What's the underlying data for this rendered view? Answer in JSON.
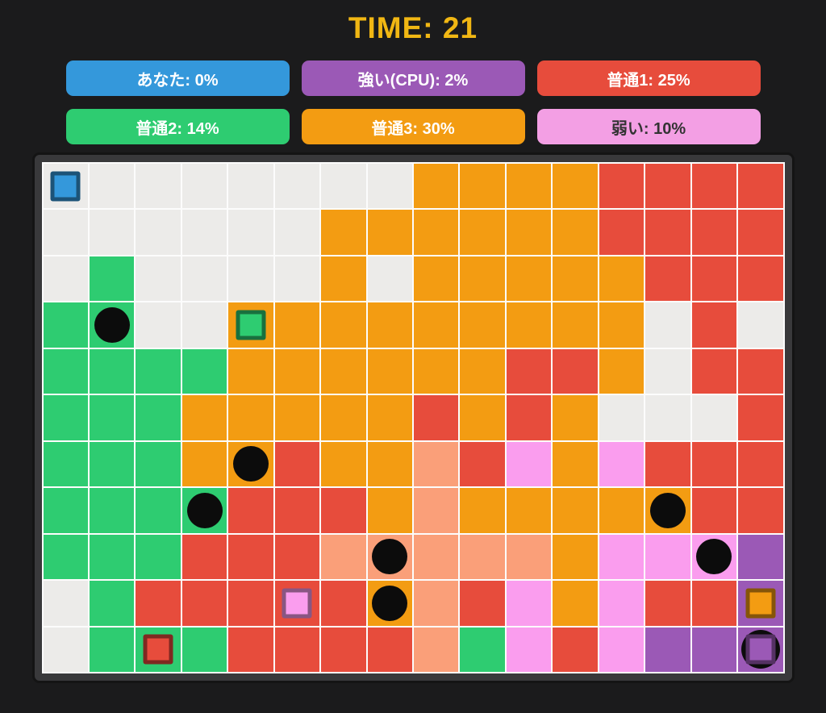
{
  "header": {
    "time_label": "TIME: 21",
    "time_color": "#F1B713"
  },
  "scoreboard": {
    "players": [
      {
        "id": "you",
        "name": "あなた",
        "percent": "0%",
        "label": "あなた: 0%",
        "bg": "#3498DB",
        "fg": "#FFFFFF"
      },
      {
        "id": "cpu-strong",
        "name": "強い(CPU)",
        "percent": "2%",
        "label": "強い(CPU): 2%",
        "bg": "#9B59B6",
        "fg": "#FFFFFF"
      },
      {
        "id": "normal1",
        "name": "普通1",
        "percent": "25%",
        "label": "普通1: 25%",
        "bg": "#E74C3C",
        "fg": "#FFFFFF"
      },
      {
        "id": "normal2",
        "name": "普通2",
        "percent": "14%",
        "label": "普通2: 14%",
        "bg": "#2ECC71",
        "fg": "#FFFFFF"
      },
      {
        "id": "normal3",
        "name": "普通3",
        "percent": "30%",
        "label": "普通3: 30%",
        "bg": "#F39C12",
        "fg": "#FFFFFF"
      },
      {
        "id": "weak",
        "name": "弱い",
        "percent": "10%",
        "label": "弱い: 10%",
        "bg": "#F39FE4",
        "fg": "#333333"
      }
    ]
  },
  "board": {
    "cols": 16,
    "rows": 11,
    "palette": {
      "E": "#ECEBE9",
      "G": "#2ECC71",
      "O": "#F39C12",
      "R": "#E74C3C",
      "S": "#FA9F79",
      "P": "#FA9DEE",
      "U": "#9B59B6"
    },
    "palette_legend": {
      "E": "empty",
      "G": "normal2-green",
      "O": "normal3-orange",
      "R": "normal1-red",
      "S": "red-trail-salmon",
      "P": "weak-pink",
      "U": "cpu-strong-purple"
    },
    "cells": [
      "EEEEEEEEOOOORRRR",
      "EEEEEEOOOOOORRRR",
      "EGEEEEOEOOOOORRR",
      "GGEEOOOOOOOOOERE",
      "GGGGOOOOOORROERR",
      "GGGOOOOOROROEEER",
      "GGGOOROOSRPOPRRR",
      "GGGGRRROSOOOOORR",
      "GGGRRRSSSSSOPPPU",
      "EGRRRRROSRPOPRRU",
      "EGGGRRRRSGPRPUUU"
    ],
    "bombs": [
      {
        "col": 1,
        "row": 3
      },
      {
        "col": 4,
        "row": 6
      },
      {
        "col": 3,
        "row": 7
      },
      {
        "col": 13,
        "row": 7
      },
      {
        "col": 7,
        "row": 8
      },
      {
        "col": 14,
        "row": 8
      },
      {
        "col": 7,
        "row": 9
      },
      {
        "col": 15,
        "row": 10,
        "big": true
      }
    ],
    "heads": [
      {
        "id": "you",
        "col": 0,
        "row": 0,
        "color": "#3498DB"
      },
      {
        "id": "normal2",
        "col": 4,
        "row": 3,
        "color": "#2ECC71"
      },
      {
        "id": "weak",
        "col": 5,
        "row": 9,
        "color": "#FA9DEE"
      },
      {
        "id": "normal3",
        "col": 15,
        "row": 9,
        "color": "#F39C12"
      },
      {
        "id": "normal1",
        "col": 2,
        "row": 10,
        "color": "#E74C3C"
      },
      {
        "id": "cpu-strong",
        "col": 15,
        "row": 10,
        "color": "#9B59B6"
      }
    ]
  }
}
